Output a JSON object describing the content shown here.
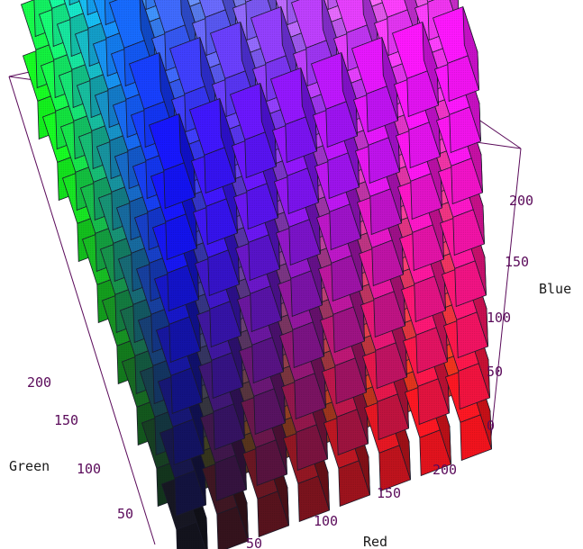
{
  "chart_data": {
    "type": "3d-cube-grid",
    "grid_levels": [
      0,
      36,
      73,
      109,
      146,
      182,
      219,
      255
    ],
    "points_per_axis": 8,
    "axes": {
      "red": {
        "label": "Red",
        "ticks": [
          "50",
          "100",
          "150",
          "200"
        ]
      },
      "green": {
        "label": "Green",
        "ticks": [
          "50",
          "100",
          "150",
          "200"
        ]
      },
      "blue": {
        "label": "Blue",
        "ticks": [
          "0",
          "50",
          "100",
          "150",
          "200"
        ]
      }
    },
    "colors": {
      "box_edge": "#5a0a5a",
      "cube_edge": "#1a1a2a",
      "tick_text": "#5a0a5a"
    }
  }
}
